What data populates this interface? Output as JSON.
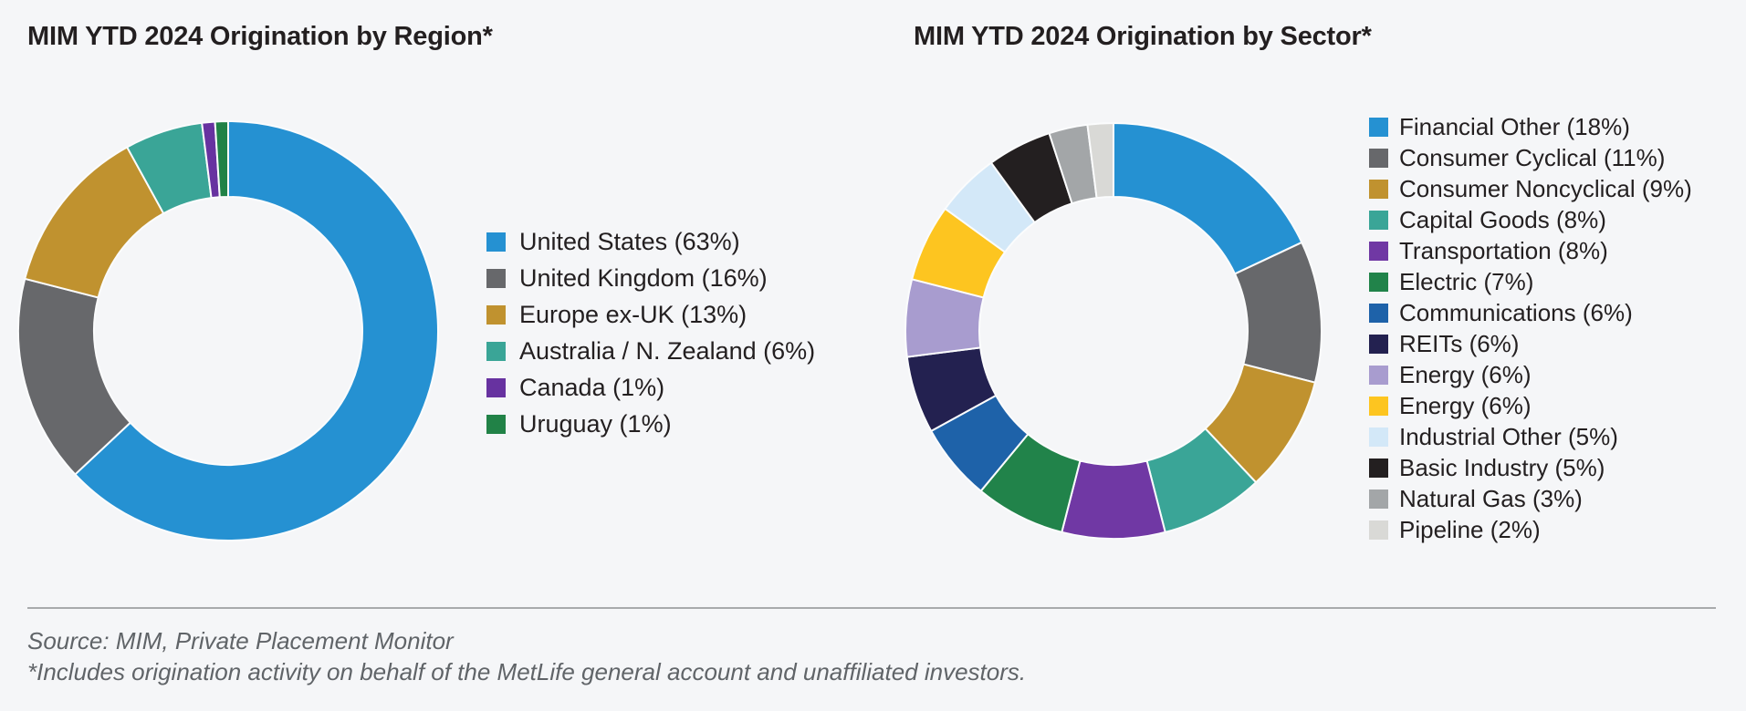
{
  "background_color": "#f5f6f8",
  "footer": {
    "source": "Source: MIM, Private Placement Monitor",
    "note": "*Includes origination activity on behalf of the MetLife general account and unaffiliated investors."
  },
  "chart_data": [
    {
      "type": "pie",
      "donut": true,
      "title": "MIM YTD 2024 Origination by Region*",
      "unit": "%",
      "start_angle": "12-oclock",
      "direction": "clockwise",
      "legend_position": "right",
      "categories": [
        "United States",
        "United Kingdom",
        "Europe ex-UK",
        "Australia / N. Zealand",
        "Canada",
        "Uruguay"
      ],
      "values": [
        63,
        16,
        13,
        6,
        1,
        1
      ],
      "colors": [
        "#2591d2",
        "#67686b",
        "#c0922f",
        "#3aa597",
        "#6732a0",
        "#218247"
      ],
      "legend_labels": [
        "United States (63%)",
        "United Kingdom (16%)",
        "Europe ex-UK (13%)",
        "Australia / N. Zealand (6%)",
        "Canada (1%)",
        "Uruguay (1%)"
      ]
    },
    {
      "type": "pie",
      "donut": true,
      "title": "MIM YTD 2024 Origination by Sector*",
      "unit": "%",
      "start_angle": "12-oclock",
      "direction": "clockwise",
      "legend_position": "right",
      "categories": [
        "Financial Other",
        "Consumer Cyclical",
        "Consumer Noncyclical",
        "Capital Goods",
        "Transportation",
        "Electric",
        "Communications",
        "REITs",
        "Energy",
        "Energy",
        "Industrial Other",
        "Basic Industry",
        "Natural Gas",
        "Pipeline"
      ],
      "values": [
        18,
        11,
        9,
        8,
        8,
        7,
        6,
        6,
        6,
        6,
        5,
        5,
        3,
        2
      ],
      "colors": [
        "#2591d2",
        "#67686b",
        "#c0922f",
        "#3aa597",
        "#7038a4",
        "#21834a",
        "#1e62a9",
        "#232150",
        "#a89ccf",
        "#fdc520",
        "#d3e8f8",
        "#231f20",
        "#a3a6a8",
        "#d9d9d6"
      ],
      "legend_labels": [
        "Financial Other (18%)",
        "Consumer Cyclical (11%)",
        "Consumer Noncyclical (9%)",
        "Capital Goods (8%)",
        "Transportation (8%)",
        "Electric (7%)",
        "Communications (6%)",
        "REITs (6%)",
        "Energy (6%)",
        "Energy (6%)",
        "Industrial Other (5%)",
        "Basic Industry (5%)",
        "Natural Gas (3%)",
        "Pipeline (2%)"
      ]
    }
  ],
  "donut_geometry": [
    {
      "size": 464,
      "outer_radius": 230,
      "inner_radius": 147
    },
    {
      "size": 460,
      "outer_radius": 228,
      "inner_radius": 147
    }
  ]
}
